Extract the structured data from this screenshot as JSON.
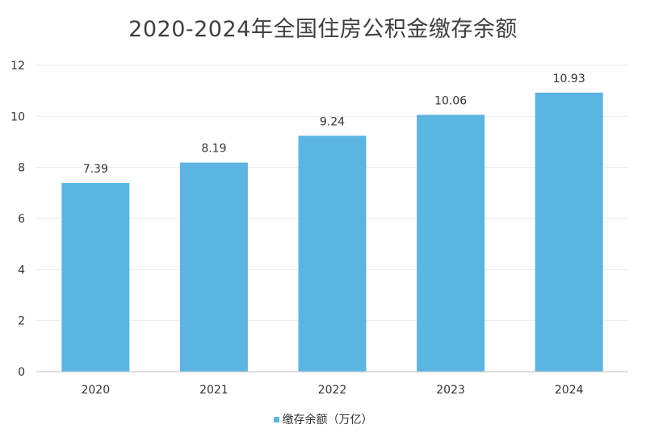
{
  "chart_data": {
    "type": "bar",
    "title": "2020-2024年全国住房公积金缴存余额",
    "categories": [
      "2020",
      "2021",
      "2022",
      "2023",
      "2024"
    ],
    "series": [
      {
        "name": "缴存余额（万亿）",
        "values": [
          7.39,
          8.19,
          9.24,
          10.06,
          10.93
        ]
      }
    ],
    "data_labels": [
      "7.39",
      "8.19",
      "9.24",
      "10.06",
      "10.93"
    ],
    "y_ticks": [
      "0",
      "2",
      "4",
      "6",
      "8",
      "10",
      "12"
    ],
    "ylim": [
      0,
      12
    ],
    "grid": true,
    "legend_position": "bottom",
    "bar_color": "#5bb4e1"
  }
}
